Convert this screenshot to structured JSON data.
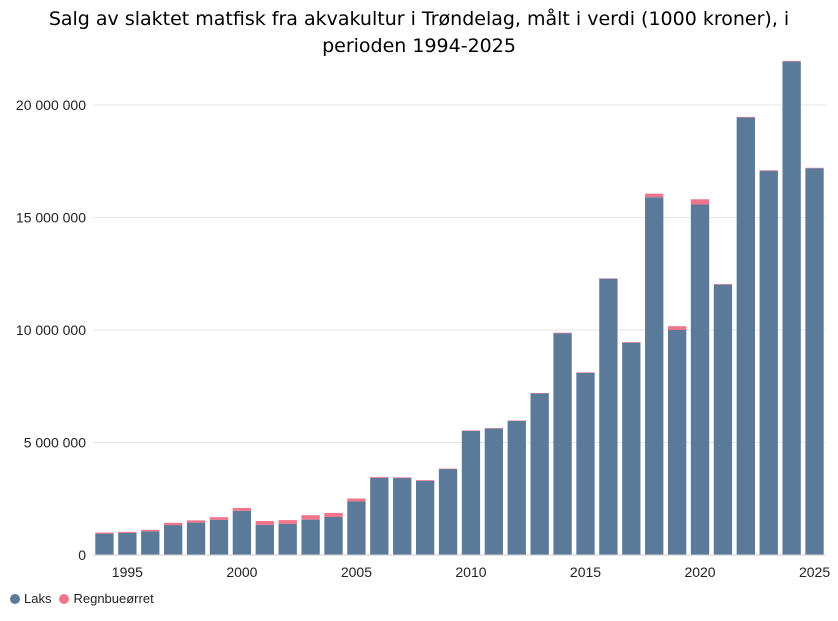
{
  "chart_data": {
    "type": "bar",
    "stacked": true,
    "title_line1": "Salg av slaktet matfisk fra akvakultur i Trøndelag, målt i verdi (1000 kroner), i",
    "title_line2": "perioden 1994-2025",
    "x": [
      1994,
      1995,
      1996,
      1997,
      1998,
      1999,
      2000,
      2001,
      2002,
      2003,
      2004,
      2005,
      2006,
      2007,
      2008,
      2009,
      2010,
      2011,
      2012,
      2013,
      2014,
      2015,
      2016,
      2017,
      2018,
      2019,
      2020,
      2021,
      2022,
      2023,
      2024,
      2025
    ],
    "x_tick_labels": [
      {
        "value": 1995,
        "label": "1995"
      },
      {
        "value": 2000,
        "label": "2000"
      },
      {
        "value": 2005,
        "label": "2005"
      },
      {
        "value": 2010,
        "label": "2010"
      },
      {
        "value": 2015,
        "label": "2015"
      },
      {
        "value": 2020,
        "label": "2020"
      },
      {
        "value": 2025,
        "label": "2025"
      }
    ],
    "y_tick_labels": [
      {
        "value": 0,
        "label": "0"
      },
      {
        "value": 5000000,
        "label": "5 000 000"
      },
      {
        "value": 10000000,
        "label": "10 000 000"
      },
      {
        "value": 15000000,
        "label": "15 000 000"
      },
      {
        "value": 20000000,
        "label": "20 000 000"
      }
    ],
    "ylim": [
      0,
      22000000
    ],
    "grid": true,
    "legend_position": "bottom-left",
    "series": [
      {
        "name": "Laks",
        "color": "#5b7a99",
        "values": [
          950000,
          980000,
          1050000,
          1330000,
          1440000,
          1560000,
          1960000,
          1340000,
          1380000,
          1570000,
          1690000,
          2380000,
          3430000,
          3420000,
          3300000,
          3820000,
          5520000,
          5620000,
          5960000,
          7180000,
          9860000,
          8100000,
          12280000,
          9440000,
          15900000,
          10000000,
          15580000,
          12020000,
          19450000,
          17080000,
          21940000,
          17190000
        ]
      },
      {
        "name": "Regnbueørret",
        "color": "#f0748b",
        "values": [
          50000,
          50000,
          70000,
          100000,
          100000,
          120000,
          130000,
          170000,
          170000,
          200000,
          180000,
          130000,
          40000,
          30000,
          30000,
          20000,
          20000,
          20000,
          20000,
          20000,
          20000,
          20000,
          20000,
          20000,
          160000,
          170000,
          230000,
          20000,
          20000,
          20000,
          20000,
          20000
        ]
      }
    ]
  }
}
